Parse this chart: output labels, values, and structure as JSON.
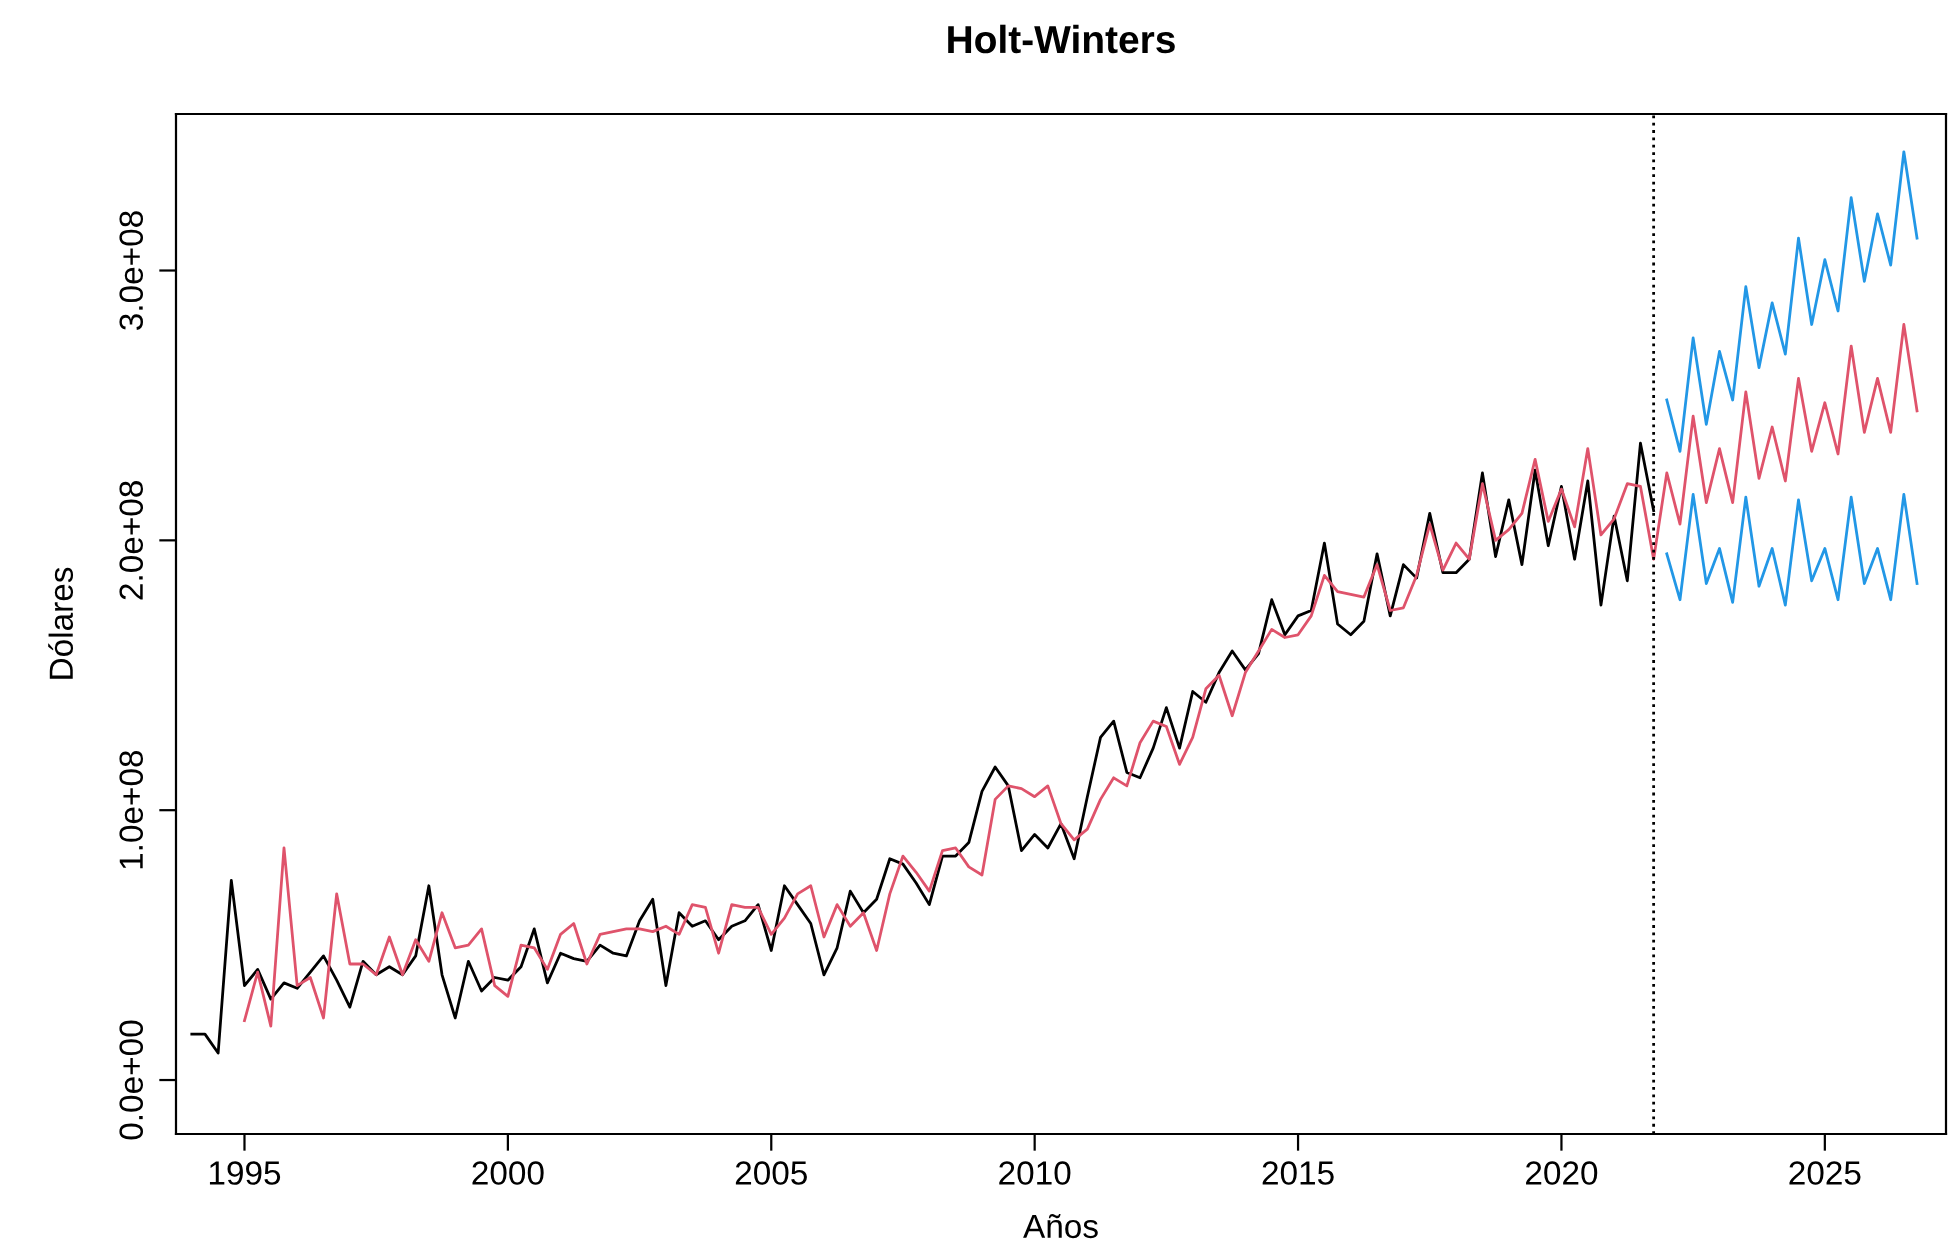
{
  "chart_data": {
    "type": "line",
    "title": "Holt-Winters",
    "xlabel": "Años",
    "ylabel": "Dólares",
    "xlim": [
      1993.7,
      2027.3
    ],
    "xticks": [
      1995,
      2000,
      2005,
      2010,
      2015,
      2020,
      2025
    ],
    "ylim": [
      -20000000,
      358000000
    ],
    "yticks": [
      {
        "value": 0,
        "label": "0.0e+00"
      },
      {
        "value": 100000000,
        "label": "1.0e+08"
      },
      {
        "value": 200000000,
        "label": "2.0e+08"
      },
      {
        "value": 300000000,
        "label": "3.0e+08"
      }
    ],
    "grid": false,
    "line_style": "solid",
    "marker": "none",
    "ref_lines": [
      {
        "axis": "x",
        "value": 2021.75,
        "color": "#000000",
        "line_style": "dotted"
      }
    ],
    "series": [
      {
        "color": "#000000",
        "x": [
          1994,
          1994.25,
          1994.5,
          1994.75,
          1995,
          1995.25,
          1995.5,
          1995.75,
          1996,
          1996.25,
          1996.5,
          1996.75,
          1997,
          1997.25,
          1997.5,
          1997.75,
          1998,
          1998.25,
          1998.5,
          1998.75,
          1999,
          1999.25,
          1999.5,
          1999.75,
          2000,
          2000.25,
          2000.5,
          2000.75,
          2001,
          2001.25,
          2001.5,
          2001.75,
          2002,
          2002.25,
          2002.5,
          2002.75,
          2003,
          2003.25,
          2003.5,
          2003.75,
          2004,
          2004.25,
          2004.5,
          2004.75,
          2005,
          2005.25,
          2005.5,
          2005.75,
          2006,
          2006.25,
          2006.5,
          2006.75,
          2007,
          2007.25,
          2007.5,
          2007.75,
          2008,
          2008.25,
          2008.5,
          2008.75,
          2009,
          2009.25,
          2009.5,
          2009.75,
          2010,
          2010.25,
          2010.5,
          2010.75,
          2011,
          2011.25,
          2011.5,
          2011.75,
          2012,
          2012.25,
          2012.5,
          2012.75,
          2013,
          2013.25,
          2013.5,
          2013.75,
          2014,
          2014.25,
          2014.5,
          2014.75,
          2015,
          2015.25,
          2015.5,
          2015.75,
          2016,
          2016.25,
          2016.5,
          2016.75,
          2017,
          2017.25,
          2017.5,
          2017.75,
          2018,
          2018.25,
          2018.5,
          2018.75,
          2019,
          2019.25,
          2019.5,
          2019.75,
          2020,
          2020.25,
          2020.5,
          2020.75,
          2021,
          2021.25,
          2021.5,
          2021.75
        ],
        "values": [
          17000000,
          17000000,
          10000000,
          74000000,
          35000000,
          41000000,
          30000000,
          36000000,
          34000000,
          40000000,
          46000000,
          37000000,
          27000000,
          44000000,
          39000000,
          42000000,
          39000000,
          46000000,
          72000000,
          39000000,
          23000000,
          44000000,
          33000000,
          38000000,
          37000000,
          42000000,
          56000000,
          36000000,
          47000000,
          45000000,
          44000000,
          50000000,
          47000000,
          46000000,
          59000000,
          67000000,
          35000000,
          62000000,
          57000000,
          59000000,
          52000000,
          57000000,
          59000000,
          65000000,
          48000000,
          72000000,
          65000000,
          58000000,
          39000000,
          49000000,
          70000000,
          62000000,
          67000000,
          82000000,
          80000000,
          73000000,
          65000000,
          83000000,
          83000000,
          88000000,
          107000000,
          116000000,
          109000000,
          85000000,
          91000000,
          86000000,
          95000000,
          82000000,
          105000000,
          127000000,
          133000000,
          114000000,
          112000000,
          123000000,
          138000000,
          123000000,
          144000000,
          140000000,
          151000000,
          159000000,
          152000000,
          158000000,
          178000000,
          165000000,
          172000000,
          174000000,
          199000000,
          169000000,
          165000000,
          170000000,
          195000000,
          172000000,
          191000000,
          186000000,
          210000000,
          188000000,
          188000000,
          193000000,
          225000000,
          194000000,
          215000000,
          191000000,
          226000000,
          198000000,
          220000000,
          193000000,
          222000000,
          176000000,
          209000000,
          185000000,
          236000000,
          211000000
        ]
      },
      {
        "color": "#df536b",
        "x": [
          1995,
          1995.25,
          1995.5,
          1995.75,
          1996,
          1996.25,
          1996.5,
          1996.75,
          1997,
          1997.25,
          1997.5,
          1997.75,
          1998,
          1998.25,
          1998.5,
          1998.75,
          1999,
          1999.25,
          1999.5,
          1999.75,
          2000,
          2000.25,
          2000.5,
          2000.75,
          2001,
          2001.25,
          2001.5,
          2001.75,
          2002,
          2002.25,
          2002.5,
          2002.75,
          2003,
          2003.25,
          2003.5,
          2003.75,
          2004,
          2004.25,
          2004.5,
          2004.75,
          2005,
          2005.25,
          2005.5,
          2005.75,
          2006,
          2006.25,
          2006.5,
          2006.75,
          2007,
          2007.25,
          2007.5,
          2007.75,
          2008,
          2008.25,
          2008.5,
          2008.75,
          2009,
          2009.25,
          2009.5,
          2009.75,
          2010,
          2010.25,
          2010.5,
          2010.75,
          2011,
          2011.25,
          2011.5,
          2011.75,
          2012,
          2012.25,
          2012.5,
          2012.75,
          2013,
          2013.25,
          2013.5,
          2013.75,
          2014,
          2014.25,
          2014.5,
          2014.75,
          2015,
          2015.25,
          2015.5,
          2015.75,
          2016,
          2016.25,
          2016.5,
          2016.75,
          2017,
          2017.25,
          2017.5,
          2017.75,
          2018,
          2018.25,
          2018.5,
          2018.75,
          2019,
          2019.25,
          2019.5,
          2019.75,
          2020,
          2020.25,
          2020.5,
          2020.75,
          2021,
          2021.25,
          2021.5,
          2021.75,
          2022,
          2022.25,
          2022.5,
          2022.75,
          2023,
          2023.25,
          2023.5,
          2023.75,
          2024,
          2024.25,
          2024.5,
          2024.75,
          2025,
          2025.25,
          2025.5,
          2025.75,
          2026,
          2026.25,
          2026.5,
          2026.75
        ],
        "values": [
          22000000,
          40000000,
          20000000,
          86000000,
          35000000,
          38000000,
          23000000,
          69000000,
          43000000,
          43000000,
          39000000,
          53000000,
          39000000,
          52000000,
          44000000,
          62000000,
          49000000,
          50000000,
          56000000,
          35000000,
          31000000,
          50000000,
          49000000,
          41000000,
          54000000,
          58000000,
          43000000,
          54000000,
          55000000,
          56000000,
          56000000,
          55000000,
          57000000,
          54000000,
          65000000,
          64000000,
          47000000,
          65000000,
          64000000,
          64000000,
          54000000,
          60000000,
          69000000,
          72000000,
          53000000,
          65000000,
          57000000,
          62000000,
          48000000,
          69000000,
          83000000,
          77000000,
          70000000,
          85000000,
          86000000,
          79000000,
          76000000,
          104000000,
          109000000,
          108000000,
          105000000,
          109000000,
          95000000,
          89000000,
          93000000,
          104000000,
          112000000,
          109000000,
          125000000,
          133000000,
          131000000,
          117000000,
          127000000,
          145000000,
          150000000,
          135000000,
          151000000,
          159000000,
          167000000,
          164000000,
          165000000,
          172000000,
          187000000,
          181000000,
          180000000,
          179000000,
          191000000,
          174000000,
          175000000,
          187000000,
          206000000,
          189000000,
          199000000,
          193000000,
          221000000,
          200000000,
          204000000,
          210000000,
          230000000,
          207000000,
          219000000,
          205000000,
          234000000,
          202000000,
          208000000,
          221000000,
          220000000,
          193000000,
          225000000,
          206000000,
          246000000,
          214000000,
          234000000,
          214000000,
          255000000,
          223000000,
          242000000,
          222000000,
          260000000,
          233000000,
          251000000,
          232000000,
          272000000,
          240000000,
          260000000,
          240000000,
          280000000,
          248000000
        ]
      },
      {
        "color": "#2297e6",
        "x": [
          2022,
          2022.25,
          2022.5,
          2022.75,
          2023,
          2023.25,
          2023.5,
          2023.75,
          2024,
          2024.25,
          2024.5,
          2024.75,
          2025,
          2025.25,
          2025.5,
          2025.75,
          2026,
          2026.25,
          2026.5,
          2026.75
        ],
        "values": [
          252000000,
          233000000,
          275000000,
          243000000,
          270000000,
          252000000,
          294000000,
          264000000,
          288000000,
          269000000,
          312000000,
          280000000,
          304000000,
          285000000,
          327000000,
          296000000,
          321000000,
          302000000,
          344000000,
          312000000
        ]
      },
      {
        "color": "#2297e6",
        "x": [
          2022,
          2022.25,
          2022.5,
          2022.75,
          2023,
          2023.25,
          2023.5,
          2023.75,
          2024,
          2024.25,
          2024.5,
          2024.75,
          2025,
          2025.25,
          2025.5,
          2025.75,
          2026,
          2026.25,
          2026.5,
          2026.75
        ],
        "values": [
          195000000,
          178000000,
          217000000,
          184000000,
          197000000,
          177000000,
          216000000,
          183000000,
          197000000,
          176000000,
          215000000,
          185000000,
          197000000,
          178000000,
          216000000,
          184000000,
          197000000,
          178000000,
          217000000,
          184000000
        ]
      }
    ]
  }
}
